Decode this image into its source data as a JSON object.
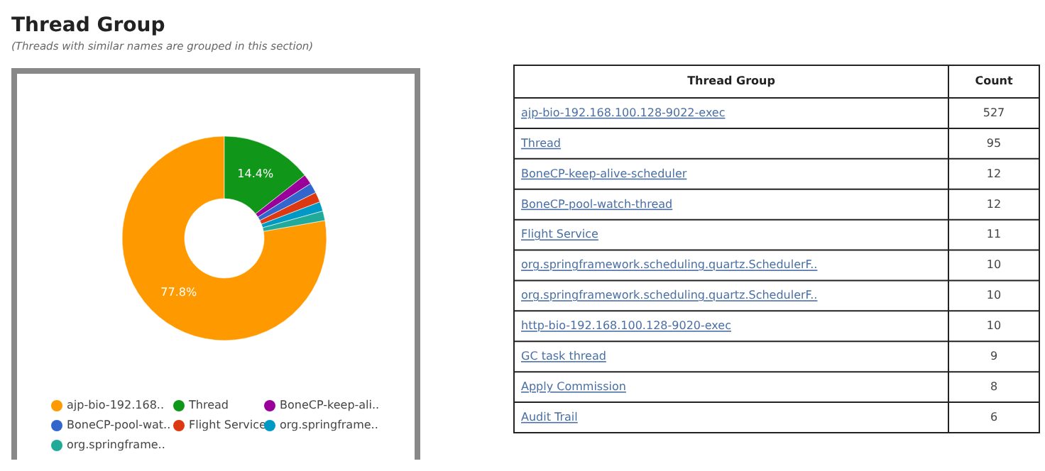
{
  "chart_data": [
    {
      "type": "donut",
      "title": "Thread Group",
      "subtitle": "(Threads with similar names are grouped in this section)",
      "categories": [
        "ajp-bio-192.168..",
        "Thread",
        "BoneCP-keep-ali..",
        "BoneCP-pool-wat..",
        "Flight Service",
        "org.springframe..",
        "org.springframe.."
      ],
      "values": [
        77.8,
        14.4,
        1.6,
        1.6,
        1.6,
        1.5,
        1.5
      ],
      "value_labels": [
        "77.8%",
        "14.4%",
        null,
        null,
        null,
        null,
        null
      ],
      "colors": [
        "#ff9900",
        "#109618",
        "#990099",
        "#3366cc",
        "#dc3912",
        "#0099c6",
        "#22aa99"
      ],
      "legend": "bottom"
    },
    {
      "type": "other",
      "xlabel": "Thread Group",
      "ylabel": "Count",
      "categories": [
        "ajp-bio-192.168.100.128-9022-exec",
        "Thread",
        "BoneCP-keep-alive-scheduler",
        "BoneCP-pool-watch-thread",
        "Flight Service",
        "org.springframework.scheduling.quartz.SchedulerF..",
        "org.springframework.scheduling.quartz.SchedulerF..",
        "http-bio-192.168.100.128-9020-exec",
        "GC task thread",
        "Apply Commission",
        "Audit Trail"
      ],
      "values": [
        527,
        95,
        12,
        12,
        11,
        10,
        10,
        10,
        9,
        8,
        6
      ],
      "data_labels": true
    }
  ]
}
